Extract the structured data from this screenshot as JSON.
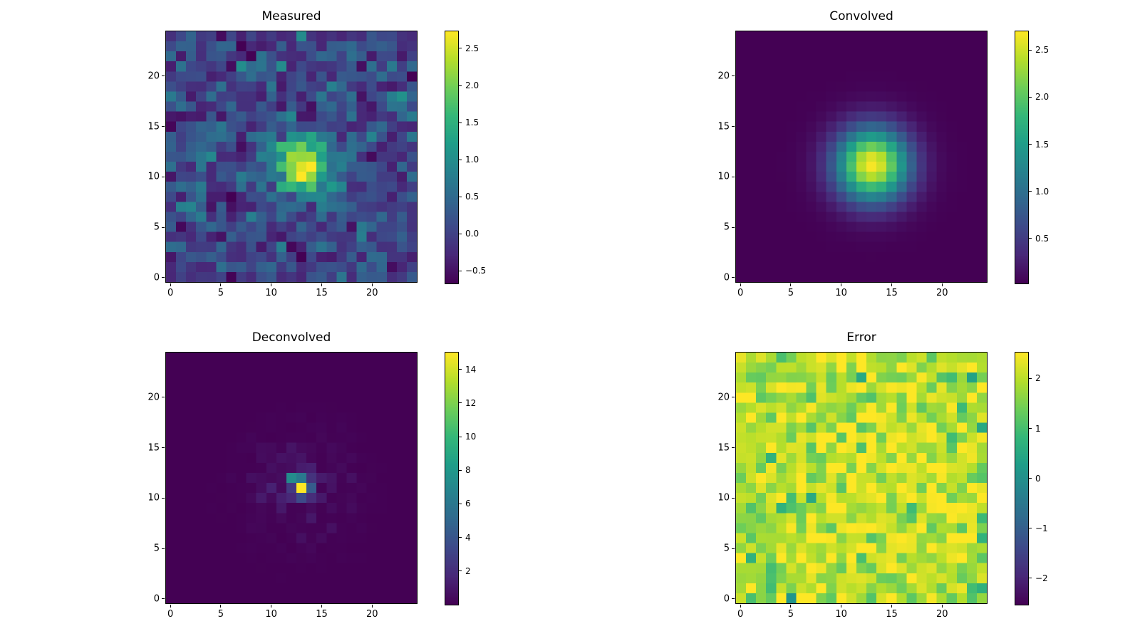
{
  "figure": {
    "background": "#ffffff",
    "colormap": {
      "name": "viridis",
      "stops": [
        "#440154",
        "#482878",
        "#3e4989",
        "#31688e",
        "#26828e",
        "#1f9e89",
        "#35b779",
        "#6ece58",
        "#b5de2b",
        "#fde725"
      ]
    }
  },
  "chart_data": [
    {
      "type": "heatmap",
      "title": "Measured",
      "grid_size": [
        25,
        25
      ],
      "xlim": [
        -0.5,
        24.5
      ],
      "ylim": [
        -0.5,
        24.5
      ],
      "x_ticks": [
        0,
        5,
        10,
        15,
        20
      ],
      "x_tick_labels": [
        "0",
        "5",
        "10",
        "15",
        "20"
      ],
      "y_ticks": [
        0,
        5,
        10,
        15,
        20
      ],
      "y_tick_labels": [
        "0",
        "5",
        "10",
        "15",
        "20"
      ],
      "colorbar": {
        "vmin": -0.67,
        "vmax": 2.73,
        "ticks": [
          2.5,
          2.0,
          1.5,
          1.0,
          0.5,
          0.0,
          -0.5
        ],
        "tick_labels": [
          "2.5",
          "2.0",
          "1.5",
          "1.0",
          "0.5",
          "0.0",
          "−0.5"
        ]
      },
      "pattern": {
        "kind": "gaussian_plus_noise",
        "center": [
          13.2,
          11.0
        ],
        "sigma": 2.1,
        "amplitude": 2.45,
        "noise_mean": 0.06,
        "noise_std": 0.32,
        "seed": 11
      }
    },
    {
      "type": "heatmap",
      "title": "Convolved",
      "grid_size": [
        25,
        25
      ],
      "xlim": [
        -0.5,
        24.5
      ],
      "ylim": [
        -0.5,
        24.5
      ],
      "x_ticks": [
        0,
        5,
        10,
        15,
        20
      ],
      "x_tick_labels": [
        "0",
        "5",
        "10",
        "15",
        "20"
      ],
      "y_ticks": [
        0,
        5,
        10,
        15,
        20
      ],
      "y_tick_labels": [
        "0",
        "5",
        "10",
        "15",
        "20"
      ],
      "colorbar": {
        "vmin": 0.02,
        "vmax": 2.7,
        "ticks": [
          2.5,
          2.0,
          1.5,
          1.0,
          0.5
        ],
        "tick_labels": [
          "2.5",
          "2.0",
          "1.5",
          "1.0",
          "0.5"
        ]
      },
      "pattern": {
        "kind": "gaussian",
        "center": [
          13.1,
          11.2
        ],
        "sigma": 2.55,
        "amplitude": 2.66,
        "base": 0.02,
        "seed": 1
      }
    },
    {
      "type": "heatmap",
      "title": "Deconvolved",
      "grid_size": [
        25,
        25
      ],
      "xlim": [
        -0.5,
        24.5
      ],
      "ylim": [
        -0.5,
        24.5
      ],
      "x_ticks": [
        0,
        5,
        10,
        15,
        20
      ],
      "x_tick_labels": [
        "0",
        "5",
        "10",
        "15",
        "20"
      ],
      "y_ticks": [
        0,
        5,
        10,
        15,
        20
      ],
      "y_tick_labels": [
        "0",
        "5",
        "10",
        "15",
        "20"
      ],
      "colorbar": {
        "vmin": 0.0,
        "vmax": 15.0,
        "ticks": [
          14,
          12,
          10,
          8,
          6,
          4,
          2
        ],
        "tick_labels": [
          "14",
          "12",
          "10",
          "8",
          "6",
          "4",
          "2"
        ]
      },
      "pattern": {
        "kind": "delta_halo",
        "center": [
          13,
          11
        ],
        "cells": {
          "13,11": 15.0,
          "12,12": 7.2,
          "13,12": 6.1,
          "14,11": 4.3,
          "13,10": 3.4,
          "12,11": 2.5,
          "14,12": 2.2,
          "14,10": 1.9,
          "12,10": 1.7
        },
        "halo_amp": 1.15,
        "halo_sigma": 3.0,
        "seed": 23
      }
    },
    {
      "type": "heatmap",
      "title": "Error",
      "grid_size": [
        25,
        25
      ],
      "xlim": [
        -0.5,
        24.5
      ],
      "ylim": [
        -0.5,
        24.5
      ],
      "x_ticks": [
        0,
        5,
        10,
        15,
        20
      ],
      "x_tick_labels": [
        "0",
        "5",
        "10",
        "15",
        "20"
      ],
      "y_ticks": [
        0,
        5,
        10,
        15,
        20
      ],
      "y_tick_labels": [
        "0",
        "5",
        "10",
        "15",
        "20"
      ],
      "colorbar": {
        "vmin": -2.53,
        "vmax": 2.52,
        "ticks": [
          2,
          1,
          0,
          -1,
          -2
        ],
        "tick_labels": [
          "2",
          "1",
          "0",
          "−1",
          "−2"
        ]
      },
      "pattern": {
        "kind": "clipped_noise",
        "mean": 1.82,
        "std": 0.52,
        "bump_amp": 0.45,
        "bump_sigma": 5.5,
        "center": [
          13,
          11
        ],
        "clip": [
          -2.53,
          2.52
        ],
        "seed": 99
      }
    }
  ]
}
